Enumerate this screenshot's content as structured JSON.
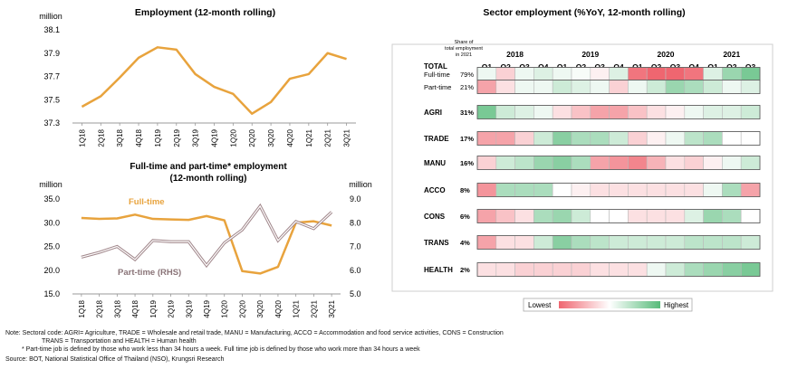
{
  "chart_data": [
    {
      "type": "line",
      "title": "Employment (12-month rolling)",
      "ylabel": "million",
      "categories": [
        "1Q18",
        "2Q18",
        "3Q18",
        "4Q18",
        "1Q19",
        "2Q19",
        "3Q19",
        "4Q19",
        "1Q20",
        "2Q20",
        "3Q20",
        "4Q20",
        "1Q21",
        "2Q21",
        "3Q21"
      ],
      "values": [
        37.44,
        37.53,
        37.69,
        37.86,
        37.95,
        37.93,
        37.72,
        37.61,
        37.55,
        37.38,
        37.48,
        37.68,
        37.72,
        37.9,
        37.85
      ],
      "ylim": [
        37.3,
        38.1
      ],
      "yticks": [
        "37.3",
        "37.5",
        "37.7",
        "37.9",
        "38.1"
      ],
      "grid": false,
      "color": "#E8A33D"
    },
    {
      "type": "line",
      "title": "Full-time and part-time* employment",
      "subtitle": "(12-month rolling)",
      "ylabel": "million",
      "ylabel_right": "million",
      "categories": [
        "1Q18",
        "2Q18",
        "3Q18",
        "4Q18",
        "1Q19",
        "2Q19",
        "3Q19",
        "4Q19",
        "1Q20",
        "2Q20",
        "3Q20",
        "4Q20",
        "1Q21",
        "2Q21",
        "3Q21"
      ],
      "ylim": [
        15,
        35
      ],
      "ylim_right": [
        5,
        9
      ],
      "yticks": [
        "15.0",
        "20.0",
        "25.0",
        "30.0",
        "35.0"
      ],
      "yticks_right": [
        "5.0",
        "6.0",
        "7.0",
        "8.0",
        "9.0"
      ],
      "series": [
        {
          "name": "Full-time",
          "axis": "left",
          "color": "#E8A33D",
          "values": [
            31.0,
            30.8,
            30.9,
            31.7,
            30.8,
            30.7,
            30.6,
            31.4,
            30.5,
            19.8,
            19.3,
            20.7,
            30.0,
            30.3,
            29.4
          ]
        },
        {
          "name": "Part-time (RHS)",
          "axis": "right",
          "color": "#A0868A",
          "values": [
            6.55,
            6.75,
            7.0,
            6.45,
            7.25,
            7.2,
            7.2,
            6.2,
            7.15,
            7.7,
            8.7,
            7.25,
            8.05,
            7.75,
            8.45
          ]
        }
      ]
    },
    {
      "type": "heatmap",
      "title": "Sector employment (%YoY, 12-month rolling)",
      "share_header": "Share of total employment in 2021",
      "years": [
        "2018",
        "2019",
        "2020",
        "2021"
      ],
      "quarters": [
        "Q1",
        "Q2",
        "Q3",
        "Q4",
        "Q1",
        "Q2",
        "Q3",
        "Q4",
        "Q1",
        "Q2",
        "Q3",
        "Q4",
        "Q1",
        "Q2",
        "Q3"
      ],
      "legend": {
        "low": "Lowest",
        "high": "Highest"
      },
      "rows": [
        {
          "label": "TOTAL",
          "bold": true,
          "header_only": true
        },
        {
          "label": "Full-time",
          "share": "79%",
          "values": [
            0.1,
            -0.3,
            0.1,
            0.2,
            0.1,
            0.05,
            -0.1,
            0.2,
            -0.9,
            -1,
            -1,
            -0.9,
            0.2,
            0.6,
            0.8
          ]
        },
        {
          "label": "Part-time",
          "share": "21%",
          "values": [
            -0.6,
            -0.2,
            0.1,
            0.1,
            0.3,
            0.2,
            0.1,
            -0.3,
            0.1,
            0.3,
            0.6,
            0.5,
            0.3,
            0.1,
            0.2
          ]
        },
        {
          "label": "AGRI",
          "share": "31%",
          "bold": true,
          "values": [
            0.8,
            0.3,
            0.2,
            0.1,
            -0.2,
            -0.4,
            -0.6,
            -0.6,
            -0.4,
            -0.2,
            -0.1,
            0.1,
            0.2,
            0.2,
            0.3
          ]
        },
        {
          "label": "TRADE",
          "share": "17%",
          "bold": true,
          "values": [
            -0.6,
            -0.6,
            -0.3,
            0.3,
            0.7,
            0.5,
            0.5,
            0.3,
            -0.3,
            -0.1,
            0.1,
            0.4,
            0.5,
            0.0,
            0.0
          ]
        },
        {
          "label": "MANU",
          "share": "16%",
          "bold": true,
          "values": [
            -0.3,
            0.3,
            0.4,
            0.6,
            0.7,
            0.5,
            -0.6,
            -0.7,
            -0.8,
            -0.5,
            -0.2,
            -0.3,
            -0.1,
            0.1,
            0.3
          ]
        },
        {
          "label": "ACCO",
          "share": "8%",
          "bold": true,
          "values": [
            -0.7,
            0.5,
            0.5,
            0.5,
            0.0,
            -0.1,
            -0.2,
            -0.2,
            -0.2,
            -0.2,
            -0.2,
            -0.2,
            0.1,
            0.5,
            -0.6
          ]
        },
        {
          "label": "CONS",
          "share": "6%",
          "bold": true,
          "values": [
            -0.6,
            -0.4,
            -0.2,
            0.5,
            0.6,
            0.3,
            0.0,
            0.0,
            -0.2,
            -0.2,
            -0.2,
            0.2,
            0.6,
            0.5,
            0.0
          ]
        },
        {
          "label": "TRANS",
          "share": "4%",
          "bold": true,
          "values": [
            -0.6,
            -0.2,
            -0.2,
            0.3,
            0.7,
            0.5,
            0.4,
            0.3,
            0.3,
            0.3,
            0.3,
            0.4,
            0.4,
            0.4,
            0.3
          ]
        },
        {
          "label": "HEALTH",
          "share": "2%",
          "bold": true,
          "values": [
            -0.2,
            -0.2,
            -0.3,
            -0.3,
            -0.3,
            -0.3,
            -0.2,
            -0.2,
            -0.2,
            0.1,
            0.3,
            0.5,
            0.6,
            0.7,
            0.8
          ]
        }
      ]
    }
  ],
  "notes": {
    "line1": "Note: Sectoral code: AGRI= Agriculture, TRADE = Wholesale and retail trade, MANU = Manufacturing, ACCO = Accommodation and food service activities, CONS = Construction",
    "line2": "TRANS = Transportation and HEALTH = Human health",
    "line3": "* Part-time job is defined by those who work less than 34 hours a week. Full time job is defined by those who work  more than 34 hours a week",
    "source": "Source: BOT, National Statistical Office of Thailand (NSO), Krungsri Research"
  }
}
